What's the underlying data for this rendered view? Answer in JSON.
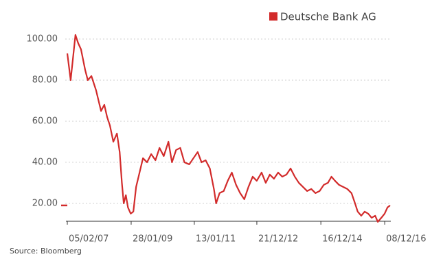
{
  "chart_data": {
    "type": "line",
    "legend_position": "top-right",
    "source": "Source: Bloomberg",
    "grid": true,
    "ylim": [
      11.3,
      104
    ],
    "yticks": [
      {
        "value": 20,
        "label": "20.00"
      },
      {
        "value": 40,
        "label": "40.00"
      },
      {
        "value": 60,
        "label": "60.00"
      },
      {
        "value": 80,
        "label": "80.00"
      },
      {
        "value": 100,
        "label": "100.00"
      }
    ],
    "xlim": [
      "05/02/07",
      "15/02/17"
    ],
    "xticks": [
      "05/02/07",
      "28/01/09",
      "13/01/11",
      "21/12/12",
      "16/12/14",
      "08/12/16"
    ],
    "x": [
      "05/02/07",
      "15/03/07",
      "08/05/07",
      "08/06/07",
      "10/07/07",
      "26/08/07",
      "25/09/07",
      "05/11/07",
      "28/12/07",
      "22/02/08",
      "30/03/08",
      "01/05/08",
      "01/06/08",
      "10/07/08",
      "20/08/08",
      "20/09/08",
      "15/10/08",
      "05/11/08",
      "29/11/08",
      "23/12/08",
      "23/01/09",
      "22/02/09",
      "25/03/09",
      "03/05/09",
      "11/06/09",
      "27/07/09",
      "12/09/09",
      "30/10/09",
      "15/12/09",
      "01/02/10",
      "26/03/10",
      "05/05/10",
      "21/06/10",
      "07/08/10",
      "23/09/10",
      "17/11/10",
      "03/01/11",
      "20/02/11",
      "05/04/11",
      "21/05/11",
      "08/07/11",
      "23/08/11",
      "17/09/11",
      "26/10/11",
      "12/12/11",
      "27/01/12",
      "13/03/12",
      "30/04/12",
      "15/06/12",
      "01/08/12",
      "17/09/12",
      "04/11/12",
      "20/12/12",
      "13/02/13",
      "01/04/13",
      "17/05/13",
      "03/07/13",
      "19/08/13",
      "05/10/13",
      "21/11/13",
      "07/01/14",
      "24/02/14",
      "11/04/14",
      "28/05/14",
      "14/07/14",
      "30/08/14",
      "16/10/14",
      "02/12/14",
      "18/01/15",
      "06/03/15",
      "15/04/15",
      "25/05/15",
      "10/07/15",
      "26/08/15",
      "12/10/15",
      "28/11/15",
      "07/01/16",
      "06/02/16",
      "17/03/16",
      "25/04/16",
      "04/06/16",
      "13/07/16",
      "22/08/16",
      "21/09/16",
      "31/10/16",
      "07/12/16",
      "08/01/17",
      "07/02/17"
    ],
    "series": [
      {
        "name": "Deutsche Bank AG",
        "color": "#d22b2b",
        "values": [
          93,
          80,
          102,
          98,
          95,
          85,
          80,
          82,
          75,
          65,
          68,
          62,
          58,
          50,
          54,
          45,
          30,
          20,
          24,
          18,
          15,
          16,
          28,
          35,
          42,
          40,
          44,
          41,
          47,
          43,
          50,
          40,
          46,
          47,
          40,
          39,
          42,
          45,
          40,
          41,
          37,
          27,
          20,
          25,
          26,
          31,
          35,
          29,
          25,
          22,
          28,
          33,
          31,
          35,
          30,
          34,
          32,
          35,
          33,
          34,
          37,
          33,
          30,
          28,
          26,
          27,
          25,
          26,
          29,
          30,
          33,
          31,
          29,
          28,
          27,
          25,
          20,
          16,
          14,
          16,
          15,
          13,
          14,
          11,
          13,
          15,
          18,
          19
        ]
      }
    ]
  }
}
